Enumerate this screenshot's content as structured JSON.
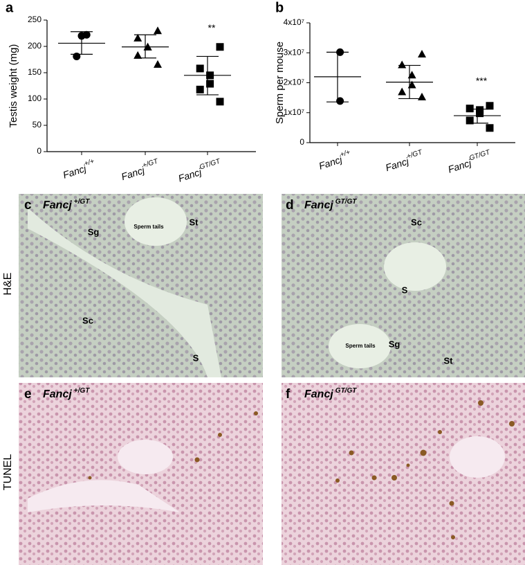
{
  "chart_data": [
    {
      "type": "scatter",
      "panel": "a",
      "y_label": "Testis weight (mg)",
      "gene": "Fancj",
      "categories": [
        "+/+",
        "+/GT",
        "GT/GT"
      ],
      "markers": [
        "circle",
        "triangle",
        "square"
      ],
      "color": "#000000",
      "points": [
        [
          222,
          220,
          181
        ],
        [
          230,
          216,
          199,
          199,
          183,
          166
        ],
        [
          199,
          158,
          145,
          129,
          118,
          95
        ]
      ],
      "means": [
        206,
        199,
        145
      ],
      "sd_upper": [
        228,
        222,
        181
      ],
      "sd_lower": [
        185,
        178,
        108
      ],
      "annotations": [
        null,
        null,
        "**"
      ],
      "ylim": [
        0,
        250
      ],
      "yticks": [
        0,
        50,
        100,
        150,
        200,
        250
      ]
    },
    {
      "type": "scatter",
      "panel": "b",
      "y_label": "Sperm per mouse",
      "gene": "Fancj",
      "categories": [
        "+/+",
        "+/GT",
        "GT/GT"
      ],
      "markers": [
        "circle",
        "triangle",
        "square"
      ],
      "color": "#000000",
      "points": [
        [
          30200000,
          13900000
        ],
        [
          29600000,
          26000000,
          22600000,
          19300000,
          17000000,
          15300000
        ],
        [
          12300000,
          11400000,
          10900000,
          9800000,
          7400000,
          4900000
        ]
      ],
      "means": [
        22000000,
        20200000,
        9000000
      ],
      "sd_upper": [
        30200000,
        25800000,
        11200000
      ],
      "sd_lower": [
        13600000,
        14700000,
        6500000
      ],
      "annotations": [
        null,
        null,
        "***"
      ],
      "ylim": [
        0,
        40000000
      ],
      "yticks": [
        0,
        {
          "value": 10000000,
          "label": "1x10⁷"
        },
        {
          "value": 20000000,
          "label": "2x10⁷"
        },
        {
          "value": 30000000,
          "label": "3x10⁷"
        },
        {
          "value": 40000000,
          "label": "4x10⁷"
        }
      ]
    }
  ],
  "rows": [
    "H&E",
    "TUNEL"
  ],
  "panels": [
    {
      "panel": "c",
      "gene": "Fancj",
      "genotype": "+/GT",
      "labels": [
        "Sg",
        "Sperm tails",
        "St",
        "Sc",
        "S"
      ]
    },
    {
      "panel": "d",
      "gene": "Fancj",
      "genotype": "GT/GT",
      "labels": [
        "Sc",
        "S",
        "Sperm tails",
        "Sg",
        "St"
      ]
    },
    {
      "panel": "e",
      "gene": "Fancj",
      "genotype": "+/GT",
      "labels": []
    },
    {
      "panel": "f",
      "gene": "Fancj",
      "genotype": "GT/GT",
      "labels": []
    }
  ]
}
